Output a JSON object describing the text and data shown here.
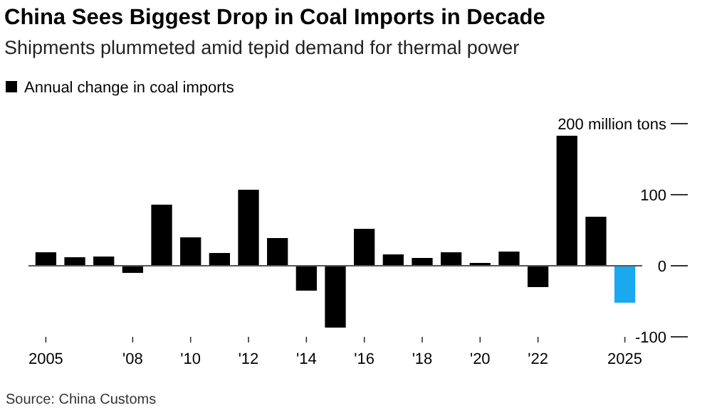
{
  "chart_data": {
    "type": "bar",
    "title": "China Sees Biggest Drop in Coal Imports in Decade",
    "subtitle": "Shipments plummeted amid tepid demand for thermal power",
    "x": [
      2005,
      2006,
      2007,
      2008,
      2009,
      2010,
      2011,
      2012,
      2013,
      2014,
      2015,
      2016,
      2017,
      2018,
      2019,
      2020,
      2021,
      2022,
      2023,
      2024,
      2025
    ],
    "series": [
      {
        "name": "Annual change in coal imports",
        "color": "#000000",
        "values": [
          19,
          12,
          13,
          -10,
          86,
          40,
          18,
          107,
          39,
          -35,
          -87,
          52,
          16,
          11,
          19,
          4,
          20,
          -30,
          183,
          69,
          -52
        ],
        "colors": [
          "#000000",
          "#000000",
          "#000000",
          "#000000",
          "#000000",
          "#000000",
          "#000000",
          "#000000",
          "#000000",
          "#000000",
          "#000000",
          "#000000",
          "#000000",
          "#000000",
          "#000000",
          "#000000",
          "#000000",
          "#000000",
          "#000000",
          "#000000",
          "#1aa9ee"
        ]
      }
    ],
    "xlim": [
      2004.4,
      2025.6
    ],
    "xticks": [
      2005,
      {
        "value": 2008,
        "label": "'08"
      },
      {
        "value": 2010,
        "label": "'10"
      },
      {
        "value": 2012,
        "label": "'12"
      },
      {
        "value": 2014,
        "label": "'14"
      },
      {
        "value": 2016,
        "label": "'16"
      },
      {
        "value": 2018,
        "label": "'18"
      },
      {
        "value": 2020,
        "label": "'20"
      },
      {
        "value": 2022,
        "label": "'22"
      },
      2025
    ],
    "ylim": [
      -100,
      200
    ],
    "yticks": [
      -100,
      0,
      100,
      {
        "value": 200,
        "label": "200 million tons"
      }
    ],
    "legend": "top left",
    "ref_lines": [
      {
        "axis": "y",
        "value": 0,
        "color": "#555555"
      }
    ],
    "annotations": [
      "Source: China Customs"
    ]
  }
}
